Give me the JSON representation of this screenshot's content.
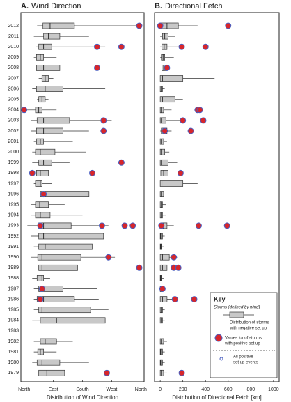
{
  "chart_data": [
    {
      "type": "boxplot",
      "panel": "A.",
      "title": "Wind Direction",
      "xlabel": "Distribution of Wind Direction",
      "categories": [
        "2012",
        "2011",
        "2010",
        "2009",
        "2008",
        "2007",
        "2006",
        "2005",
        "2004",
        "2003",
        "2002",
        "2001",
        "2000",
        "1999",
        "1998",
        "1997",
        "1996",
        "1995",
        "1994",
        "1993",
        "1992",
        "1991",
        "1990",
        "1989",
        "1988",
        "1987",
        "1986",
        "1985",
        "1984",
        "1983",
        "1982",
        "1981",
        "1980",
        "1979"
      ],
      "boxes": [
        [
          40,
          58,
          80,
          155,
          350
        ],
        [
          30,
          60,
          75,
          110,
          200
        ],
        [
          35,
          45,
          60,
          85,
          250
        ],
        [
          30,
          38,
          50,
          60,
          100
        ],
        [
          10,
          38,
          60,
          110,
          230
        ],
        [
          45,
          55,
          65,
          75,
          90
        ],
        [
          25,
          38,
          65,
          120,
          250
        ],
        [
          40,
          45,
          55,
          65,
          75
        ],
        [
          5,
          35,
          45,
          55,
          100
        ],
        [
          20,
          40,
          60,
          140,
          270
        ],
        [
          20,
          38,
          60,
          120,
          200
        ],
        [
          30,
          38,
          50,
          60,
          150
        ],
        [
          25,
          35,
          50,
          95,
          190
        ],
        [
          25,
          45,
          60,
          85,
          140
        ],
        [
          5,
          38,
          50,
          75,
          100
        ],
        [
          30,
          35,
          50,
          55,
          85
        ],
        [
          25,
          50,
          65,
          200,
          200
        ],
        [
          20,
          35,
          48,
          75,
          125
        ],
        [
          20,
          35,
          50,
          80,
          180
        ],
        [
          10,
          45,
          60,
          145,
          260
        ],
        [
          20,
          45,
          60,
          245,
          245
        ],
        [
          30,
          45,
          65,
          210,
          210
        ],
        [
          20,
          42,
          55,
          175,
          280
        ],
        [
          30,
          45,
          55,
          165,
          225
        ],
        [
          25,
          40,
          55,
          60,
          80
        ],
        [
          30,
          45,
          55,
          120,
          225
        ],
        [
          30,
          40,
          60,
          155,
          230
        ],
        [
          30,
          45,
          55,
          205,
          260
        ],
        [
          25,
          50,
          100,
          250,
          250
        ],
        null,
        [
          30,
          50,
          65,
          100,
          150
        ],
        [
          30,
          42,
          50,
          60,
          100
        ],
        [
          25,
          40,
          55,
          110,
          200
        ],
        [
          30,
          45,
          70,
          125,
          190
        ]
      ],
      "points": [
        [
          355
        ],
        [],
        [
          225,
          300
        ],
        [],
        [
          225
        ],
        [],
        [],
        [],
        [
          0
        ],
        [
          245
        ],
        [
          245
        ],
        [],
        [],
        [
          300
        ],
        [
          25,
          210
        ],
        [],
        [
          60
        ],
        [],
        [],
        [
          50,
          240,
          310,
          335
        ],
        [],
        [],
        [
          260
        ],
        [
          355
        ],
        [],
        [
          55
        ],
        [
          50
        ],
        [],
        [],
        [],
        [],
        [],
        [],
        [
          255
        ]
      ],
      "box_color": "#c8c8c8",
      "point_color": "#d7262b",
      "xlim": [
        -10,
        370
      ],
      "xticks": [
        {
          "value": 0,
          "label": "North"
        },
        {
          "value": 90,
          "label": "East"
        },
        {
          "value": 180,
          "label": "South"
        },
        {
          "value": 270,
          "label": "West"
        },
        {
          "value": 360,
          "label": "North"
        }
      ]
    },
    {
      "type": "boxplot",
      "panel": "B.",
      "title": "Directional Fetch",
      "xlabel": "Distribution of Directional Fetch [km]",
      "categories": [
        "2012",
        "2011",
        "2010",
        "2009",
        "2008",
        "2007",
        "2006",
        "2005",
        "2004",
        "2003",
        "2002",
        "2001",
        "2000",
        "1999",
        "1998",
        "1997",
        "1996",
        "1995",
        "1994",
        "1993",
        "1992",
        "1991",
        "1990",
        "1989",
        "1988",
        "1987",
        "1986",
        "1985",
        "1984",
        "1983",
        "1982",
        "1981",
        "1980",
        "1979"
      ],
      "boxes": [
        [
          0,
          0,
          60,
          160,
          330
        ],
        [
          0,
          20,
          40,
          70,
          130
        ],
        [
          0,
          15,
          35,
          60,
          200
        ],
        [
          0,
          10,
          25,
          40,
          120
        ],
        [
          0,
          15,
          30,
          60,
          200
        ],
        [
          0,
          0,
          20,
          200,
          480
        ],
        [
          0,
          0,
          10,
          20,
          40
        ],
        [
          0,
          0,
          20,
          130,
          200
        ],
        [
          0,
          0,
          10,
          30,
          100
        ],
        [
          0,
          0,
          10,
          50,
          200
        ],
        [
          0,
          10,
          30,
          60,
          100
        ],
        [
          0,
          0,
          10,
          30,
          60
        ],
        [
          0,
          0,
          10,
          40,
          80
        ],
        [
          0,
          0,
          10,
          70,
          150
        ],
        [
          0,
          5,
          30,
          70,
          130
        ],
        [
          0,
          0,
          15,
          200,
          330
        ],
        [
          0,
          0,
          10,
          30,
          60
        ],
        [
          0,
          0,
          10,
          20,
          50
        ],
        [
          0,
          0,
          10,
          20,
          50
        ],
        [
          0,
          10,
          30,
          60,
          120
        ],
        [
          0,
          0,
          5,
          20,
          40
        ],
        [
          0,
          0,
          5,
          10,
          30
        ],
        [
          0,
          0,
          20,
          80,
          150
        ],
        [
          0,
          0,
          20,
          60,
          120
        ],
        [
          0,
          0,
          5,
          10,
          30
        ],
        [
          0,
          0,
          10,
          20,
          40
        ],
        [
          0,
          0,
          20,
          60,
          120
        ],
        [
          0,
          0,
          10,
          20,
          40
        ],
        [
          0,
          0,
          10,
          20,
          40
        ],
        null,
        [
          0,
          0,
          10,
          30,
          60
        ],
        [
          0,
          0,
          5,
          20,
          40
        ],
        [
          0,
          0,
          5,
          20,
          40
        ],
        [
          0,
          0,
          10,
          30,
          60
        ]
      ],
      "points": [
        [
          0,
          600
        ],
        [],
        [
          190,
          400
        ],
        [],
        [
          60
        ],
        [],
        [],
        [],
        [
          330,
          350
        ],
        [
          200,
          380
        ],
        [
          40,
          270
        ],
        [],
        [],
        [],
        [
          180
        ],
        [],
        [],
        [],
        [],
        [
          10,
          340,
          590
        ],
        [],
        [],
        [
          120
        ],
        [
          120,
          160
        ],
        [],
        [
          20
        ],
        [
          130,
          300
        ],
        [],
        [],
        [],
        [],
        [],
        [],
        [
          190
        ]
      ],
      "box_color": "#c8c8c8",
      "point_color": "#d7262b",
      "xlim": [
        -50,
        1050
      ],
      "xticks": [
        0,
        200,
        400,
        600,
        800,
        1000
      ]
    }
  ],
  "key": {
    "title": "Key",
    "subtitle": "Storms (defined by wind)",
    "box_line1": "Distribution of storms",
    "box_line2": "with negative set up",
    "red_line1": "Values for of storms",
    "red_line2": "with positive set up",
    "blue_line1": "All positive",
    "blue_line2": "set up events"
  }
}
